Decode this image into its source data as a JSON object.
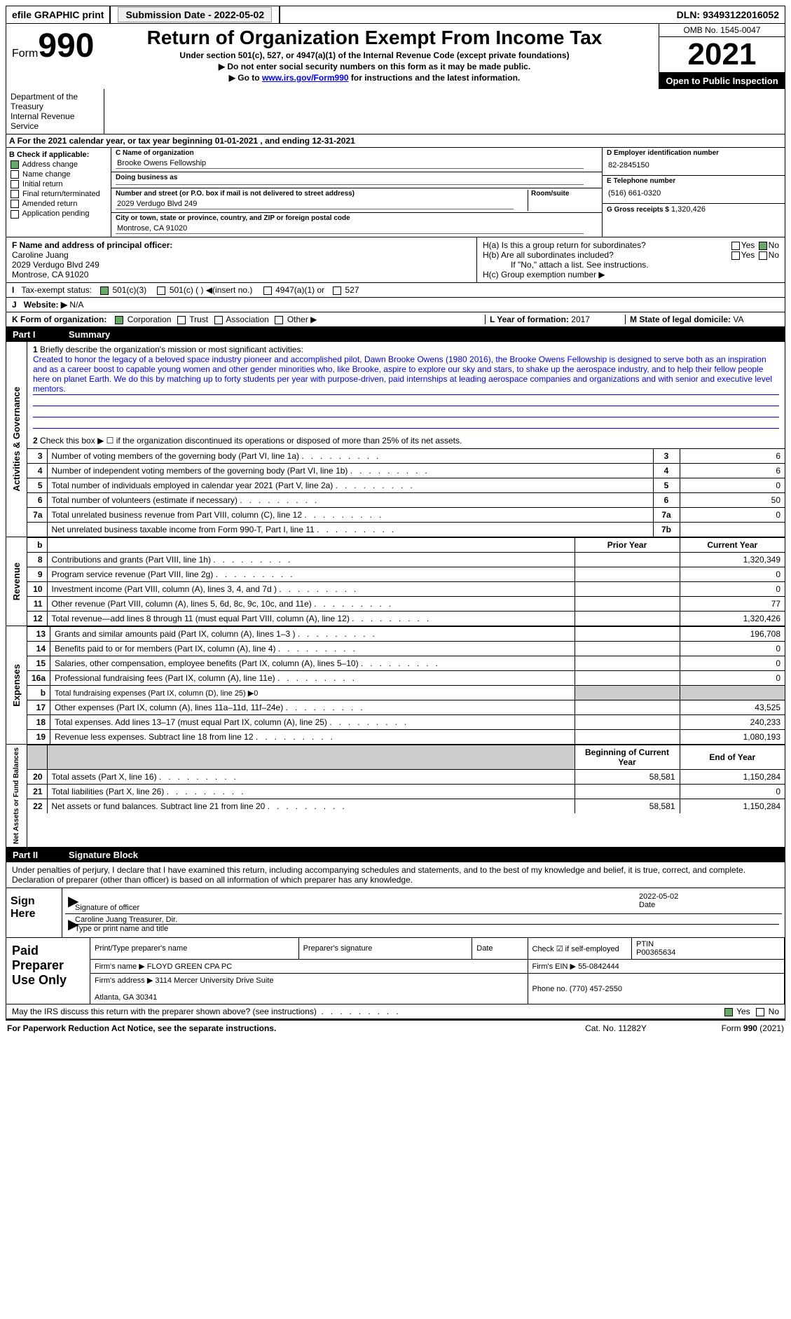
{
  "topbar": {
    "efile": "efile GRAPHIC print",
    "submission_label": "Submission Date - 2022-05-02",
    "dln_label": "DLN: 93493122016052"
  },
  "header": {
    "form": "Form",
    "num": "990",
    "title": "Return of Organization Exempt From Income Tax",
    "sub1": "Under section 501(c), 527, or 4947(a)(1) of the Internal Revenue Code (except private foundations)",
    "sub2": "▶ Do not enter social security numbers on this form as it may be made public.",
    "sub3_pre": "▶ Go to ",
    "sub3_link": "www.irs.gov/Form990",
    "sub3_post": " for instructions and the latest information.",
    "omb": "OMB No. 1545-0047",
    "year": "2021",
    "inspection": "Open to Public Inspection",
    "dept": "Department of the Treasury\nInternal Revenue Service"
  },
  "row_a_label": "A",
  "row_a": "For the 2021 calendar year, or tax year beginning 01-01-2021    , and ending 12-31-2021",
  "col_b": {
    "hdr": "B Check if applicable:",
    "items": [
      "Address change",
      "Name change",
      "Initial return",
      "Final return/terminated",
      "Amended return",
      "Application pending"
    ],
    "checked": [
      true,
      false,
      false,
      false,
      false,
      false
    ]
  },
  "col_c": {
    "name_label": "C Name of organization",
    "name": "Brooke Owens Fellowship",
    "dba_label": "Doing business as",
    "dba": "",
    "addr_label": "Number and street (or P.O. box if mail is not delivered to street address)",
    "addr": "2029 Verdugo Blvd 249",
    "room_label": "Room/suite",
    "city_label": "City or town, state or province, country, and ZIP or foreign postal code",
    "city": "Montrose, CA  91020"
  },
  "col_d": {
    "ein_label": "D Employer identification number",
    "ein": "82-2845150",
    "phone_label": "E Telephone number",
    "phone": "(516) 661-0320",
    "gross_label": "G Gross receipts $",
    "gross": "1,320,426"
  },
  "principal": {
    "f_label": "F  Name and address of principal officer:",
    "name": "Caroline Juang",
    "addr1": "2029 Verdugo Blvd 249",
    "addr2": "Montrose, CA  91020",
    "ha": "H(a)  Is this a group return for subordinates?",
    "hb": "H(b)  Are all subordinates included?",
    "hb_note": "If \"No,\" attach a list. See instructions.",
    "hc": "H(c)  Group exemption number ▶"
  },
  "tax_status": {
    "i_label": "I",
    "label": "Tax-exempt status:",
    "opts": [
      "501(c)(3)",
      "501(c) (  ) ◀(insert no.)",
      "4947(a)(1) or",
      "527"
    ]
  },
  "website": {
    "j": "J",
    "label": "Website: ▶",
    "val": "N/A"
  },
  "k": {
    "label": "K Form of organization:",
    "opts": [
      "Corporation",
      "Trust",
      "Association",
      "Other ▶"
    ]
  },
  "l": {
    "label": "L Year of formation:",
    "val": "2017"
  },
  "m": {
    "label": "M State of legal domicile:",
    "val": "VA"
  },
  "part1": {
    "num": "Part I",
    "title": "Summary"
  },
  "mission_label": "1",
  "mission_intro": "Briefly describe the organization's mission or most significant activities:",
  "mission_text": "Created to honor the legacy of a beloved space industry pioneer and accomplished pilot, Dawn Brooke Owens (1980 2016), the Brooke Owens Fellowship is designed to serve both as an inspiration and as a career boost to capable young women and other gender minorities who, like Brooke, aspire to explore our sky and stars, to shake up the aerospace industry, and to help their fellow people here on planet Earth. We do this by matching up to forty students per year with purpose-driven, paid internships at leading aerospace companies and organizations and with senior and executive level mentors.",
  "line2": "Check this box ▶ ☐  if the organization discontinued its operations or disposed of more than 25% of its net assets.",
  "governance_rows": [
    {
      "n": "3",
      "t": "Number of voting members of the governing body (Part VI, line 1a)",
      "box": "3",
      "v": "6"
    },
    {
      "n": "4",
      "t": "Number of independent voting members of the governing body (Part VI, line 1b)",
      "box": "4",
      "v": "6"
    },
    {
      "n": "5",
      "t": "Total number of individuals employed in calendar year 2021 (Part V, line 2a)",
      "box": "5",
      "v": "0"
    },
    {
      "n": "6",
      "t": "Total number of volunteers (estimate if necessary)",
      "box": "6",
      "v": "50"
    },
    {
      "n": "7a",
      "t": "Total unrelated business revenue from Part VIII, column (C), line 12",
      "box": "7a",
      "v": "0"
    },
    {
      "n": "",
      "t": "Net unrelated business taxable income from Form 990-T, Part I, line 11",
      "box": "7b",
      "v": ""
    }
  ],
  "sides": {
    "gov": "Activities & Governance",
    "rev": "Revenue",
    "exp": "Expenses",
    "net": "Net Assets or Fund Balances"
  },
  "rev_hdr": {
    "prior": "Prior Year",
    "cur": "Current Year"
  },
  "revenue_rows": [
    {
      "n": "8",
      "t": "Contributions and grants (Part VIII, line 1h)",
      "p": "",
      "c": "1,320,349"
    },
    {
      "n": "9",
      "t": "Program service revenue (Part VIII, line 2g)",
      "p": "",
      "c": "0"
    },
    {
      "n": "10",
      "t": "Investment income (Part VIII, column (A), lines 3, 4, and 7d )",
      "p": "",
      "c": "0"
    },
    {
      "n": "11",
      "t": "Other revenue (Part VIII, column (A), lines 5, 6d, 8c, 9c, 10c, and 11e)",
      "p": "",
      "c": "77"
    },
    {
      "n": "12",
      "t": "Total revenue—add lines 8 through 11 (must equal Part VIII, column (A), line 12)",
      "p": "",
      "c": "1,320,426"
    }
  ],
  "expense_rows": [
    {
      "n": "13",
      "t": "Grants and similar amounts paid (Part IX, column (A), lines 1–3 )",
      "p": "",
      "c": "196,708"
    },
    {
      "n": "14",
      "t": "Benefits paid to or for members (Part IX, column (A), line 4)",
      "p": "",
      "c": "0"
    },
    {
      "n": "15",
      "t": "Salaries, other compensation, employee benefits (Part IX, column (A), lines 5–10)",
      "p": "",
      "c": "0"
    },
    {
      "n": "16a",
      "t": "Professional fundraising fees (Part IX, column (A), line 11e)",
      "p": "",
      "c": "0"
    },
    {
      "n": "b",
      "t": "Total fundraising expenses (Part IX, column (D), line 25) ▶0",
      "p": "grey",
      "c": "grey"
    },
    {
      "n": "17",
      "t": "Other expenses (Part IX, column (A), lines 11a–11d, 11f–24e)",
      "p": "",
      "c": "43,525"
    },
    {
      "n": "18",
      "t": "Total expenses. Add lines 13–17 (must equal Part IX, column (A), line 25)",
      "p": "",
      "c": "240,233"
    },
    {
      "n": "19",
      "t": "Revenue less expenses. Subtract line 18 from line 12",
      "p": "",
      "c": "1,080,193"
    }
  ],
  "net_hdr": {
    "begin": "Beginning of Current Year",
    "end": "End of Year"
  },
  "net_rows": [
    {
      "n": "20",
      "t": "Total assets (Part X, line 16)",
      "b": "58,581",
      "e": "1,150,284"
    },
    {
      "n": "21",
      "t": "Total liabilities (Part X, line 26)",
      "b": "",
      "e": "0"
    },
    {
      "n": "22",
      "t": "Net assets or fund balances. Subtract line 21 from line 20",
      "b": "58,581",
      "e": "1,150,284"
    }
  ],
  "part2": {
    "num": "Part II",
    "title": "Signature Block"
  },
  "perjury": "Under penalties of perjury, I declare that I have examined this return, including accompanying schedules and statements, and to the best of my knowledge and belief, it is true, correct, and complete. Declaration of preparer (other than officer) is based on all information of which preparer has any knowledge.",
  "sign": {
    "here": "Sign Here",
    "sig_label": "Signature of officer",
    "date": "2022-05-02",
    "date_label": "Date",
    "name": "Caroline Juang  Treasurer, Dir.",
    "name_label": "Type or print name and title"
  },
  "prep": {
    "title": "Paid Preparer Use Only",
    "name_label": "Print/Type preparer's name",
    "sig_label": "Preparer's signature",
    "date_label": "Date",
    "check_label": "Check ☑ if self-employed",
    "ptin_label": "PTIN",
    "ptin": "P00365634",
    "firm_label": "Firm's name    ▶",
    "firm": "FLOYD GREEN CPA PC",
    "ein_label": "Firm's EIN ▶",
    "ein": "55-0842444",
    "addr_label": "Firm's address ▶",
    "addr": "3114 Mercer University Drive Suite\n\nAtlanta, GA  30341",
    "phone_label": "Phone no.",
    "phone": "(770) 457-2550"
  },
  "discuss": "May the IRS discuss this return with the preparer shown above? (see instructions)",
  "footer": {
    "left": "For Paperwork Reduction Act Notice, see the separate instructions.",
    "mid": "Cat. No. 11282Y",
    "right": "Form 990 (2021)"
  },
  "yes": "Yes",
  "no": "No"
}
